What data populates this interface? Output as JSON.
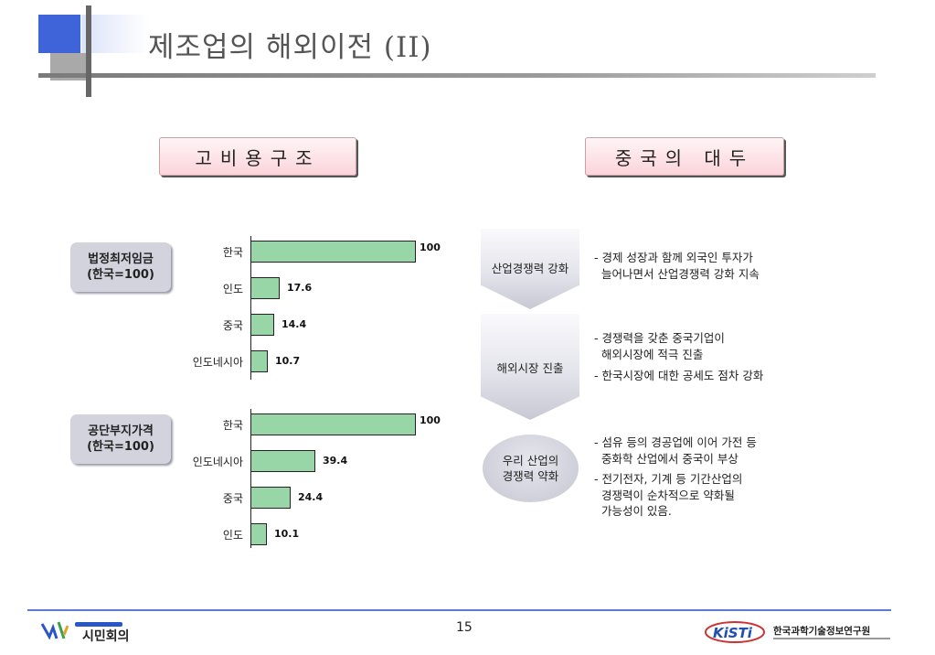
{
  "slide": {
    "title": "제조업의 해외이전 (II)",
    "page_number": "15"
  },
  "headers": {
    "left": "고비용구조",
    "right": "중국의 대두"
  },
  "categories": [
    {
      "line1": "법정최저임금",
      "line2": "(한국=100)"
    },
    {
      "line1": "공단부지가격",
      "line2": "(한국=100)"
    }
  ],
  "chart_data": [
    {
      "type": "bar",
      "orientation": "horizontal",
      "title": "법정최저임금 (한국=100)",
      "categories": [
        "한국",
        "인도",
        "중국",
        "인도네시아"
      ],
      "values": [
        100,
        17.6,
        14.4,
        10.7
      ],
      "value_labels": [
        "100",
        "17.6",
        "14.4",
        "10.7"
      ],
      "xlim": [
        0,
        100
      ],
      "bar_color": "#99d6a7"
    },
    {
      "type": "bar",
      "orientation": "horizontal",
      "title": "공단부지가격 (한국=100)",
      "categories": [
        "한국",
        "인도네시아",
        "중국",
        "인도"
      ],
      "values": [
        100,
        39.4,
        24.4,
        10.1
      ],
      "value_labels": [
        "100",
        "39.4",
        "24.4",
        "10.1"
      ],
      "xlim": [
        0,
        100
      ],
      "bar_color": "#99d6a7"
    }
  ],
  "flow": [
    {
      "label": "산업경쟁력 강화",
      "desc": "- 경제 성장과 함께 외국인 투자가\n  늘어나면서 산업경쟁력 강화 지속"
    },
    {
      "label": "해외시장 진출",
      "desc1": "- 경쟁력을 갖춘 중국기업이\n  해외시장에 적극 진출",
      "desc2": "- 한국시장에 대한 공세도 점차 강화"
    },
    {
      "label_line1": "우리 산업의",
      "label_line2": "경쟁력 약화",
      "desc1": "- 섬유 등의 경공업에 이어 가전 등\n  중화학 산업에서 중국이 부상",
      "desc2": "- 전기전자, 기계 등 기간산업의\n  경쟁력이 순차적으로 약화될\n  가능성이 있음."
    }
  ],
  "footer": {
    "left_logo_text": "시민회의",
    "right_logo_brand": "KiSTi",
    "right_logo_text": "한국과학기술정보연구원"
  }
}
